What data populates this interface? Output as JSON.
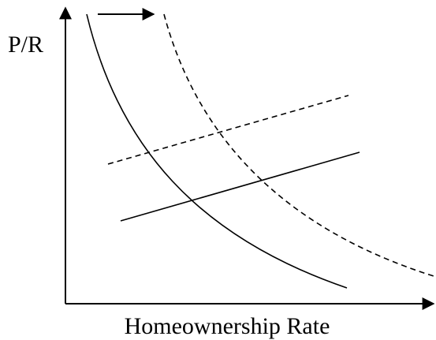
{
  "y_axis_label": "P/R",
  "x_axis_label": "Homeownership Rate"
}
